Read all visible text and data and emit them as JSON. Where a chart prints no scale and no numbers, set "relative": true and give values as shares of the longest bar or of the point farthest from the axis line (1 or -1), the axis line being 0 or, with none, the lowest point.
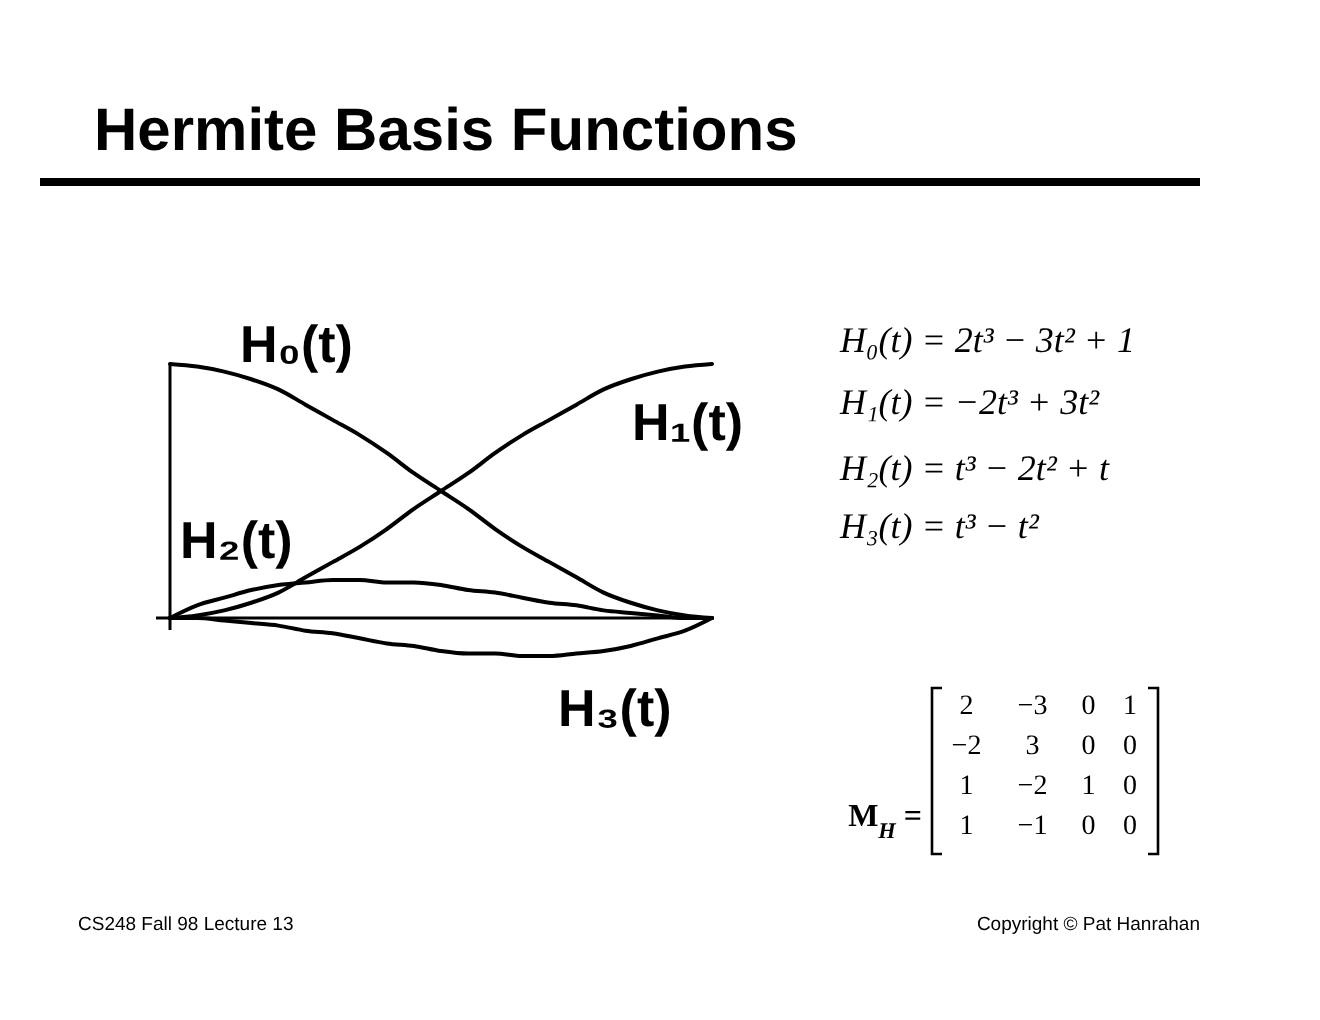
{
  "chart_data": {
    "type": "line",
    "title": "Hermite Basis Functions",
    "relative": true,
    "categories": [
      null,
      null,
      null,
      null,
      null,
      null,
      null,
      null,
      null,
      null,
      null,
      null,
      null,
      null,
      null,
      null,
      null,
      null,
      null,
      null,
      null
    ],
    "series": [
      {
        "name": "H₀(t)",
        "color": "#000000",
        "values": [
          1,
          0.99,
          0.97,
          0.94,
          0.9,
          0.84,
          0.78,
          0.72,
          0.65,
          0.57,
          0.5,
          0.43,
          0.35,
          0.28,
          0.22,
          0.16,
          0.1,
          0.06,
          0.03,
          0.01,
          0
        ]
      },
      {
        "name": "H₁(t)",
        "color": "#000000",
        "values": [
          0,
          0.01,
          0.03,
          0.06,
          0.1,
          0.16,
          0.22,
          0.28,
          0.35,
          0.43,
          0.5,
          0.57,
          0.65,
          0.72,
          0.78,
          0.84,
          0.9,
          0.94,
          0.97,
          0.99,
          1
        ]
      },
      {
        "name": "H₂(t)",
        "color": "#000000",
        "values": [
          0,
          0.05,
          0.08,
          0.11,
          0.13,
          0.14,
          0.15,
          0.15,
          0.14,
          0.14,
          0.13,
          0.11,
          0.1,
          0.08,
          0.06,
          0.05,
          0.03,
          0.02,
          0.01,
          0,
          0
        ]
      },
      {
        "name": "H₃(t)",
        "color": "#000000",
        "values": [
          0,
          0,
          -0.01,
          -0.02,
          -0.03,
          -0.05,
          -0.06,
          -0.08,
          -0.1,
          -0.11,
          -0.13,
          -0.14,
          -0.14,
          -0.15,
          -0.15,
          -0.14,
          -0.13,
          -0.11,
          -0.08,
          -0.05,
          0
        ]
      }
    ],
    "annotations": [
      "H₀(t) = 2t³ − 3t² + 1",
      "H₁(t) = −2t³ + 3t²",
      "H₂(t) = t³ − 2t² + t",
      "H₃(t) = t³ − t²",
      "M$_{H}$ =",
      "2 −3 0 1",
      "−2 3 0 0",
      "1 −2 1 0",
      "1 −1 0 0",
      "CS248 Fall 98 Lecture 13",
      "Copyright © Pat Hanrahan"
    ]
  }
}
